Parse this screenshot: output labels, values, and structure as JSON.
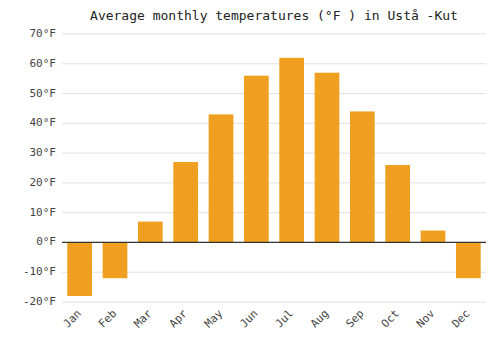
{
  "chart_data": {
    "type": "bar",
    "title": "Average monthly temperatures (°F ) in Ustå -Kut",
    "categories": [
      "Jan",
      "Feb",
      "Mar",
      "Apr",
      "May",
      "Jun",
      "Jul",
      "Aug",
      "Sep",
      "Oct",
      "Nov",
      "Dec"
    ],
    "values": [
      -18,
      -12,
      7,
      27,
      43,
      56,
      62,
      57,
      44,
      26,
      4,
      -12
    ],
    "color": "#F0A020",
    "ylim": [
      -20,
      70
    ],
    "yticks": [
      {
        "value": -20,
        "label": "-20°F"
      },
      {
        "value": -10,
        "label": "-10°F"
      },
      {
        "value": 0,
        "label": "0°F"
      },
      {
        "value": 10,
        "label": "10°F"
      },
      {
        "value": 20,
        "label": "20°F"
      },
      {
        "value": 30,
        "label": "30°F"
      },
      {
        "value": 40,
        "label": "40°F"
      },
      {
        "value": 50,
        "label": "50°F"
      },
      {
        "value": 60,
        "label": "60°F"
      },
      {
        "value": 70,
        "label": "70°F"
      }
    ],
    "grid": true
  }
}
